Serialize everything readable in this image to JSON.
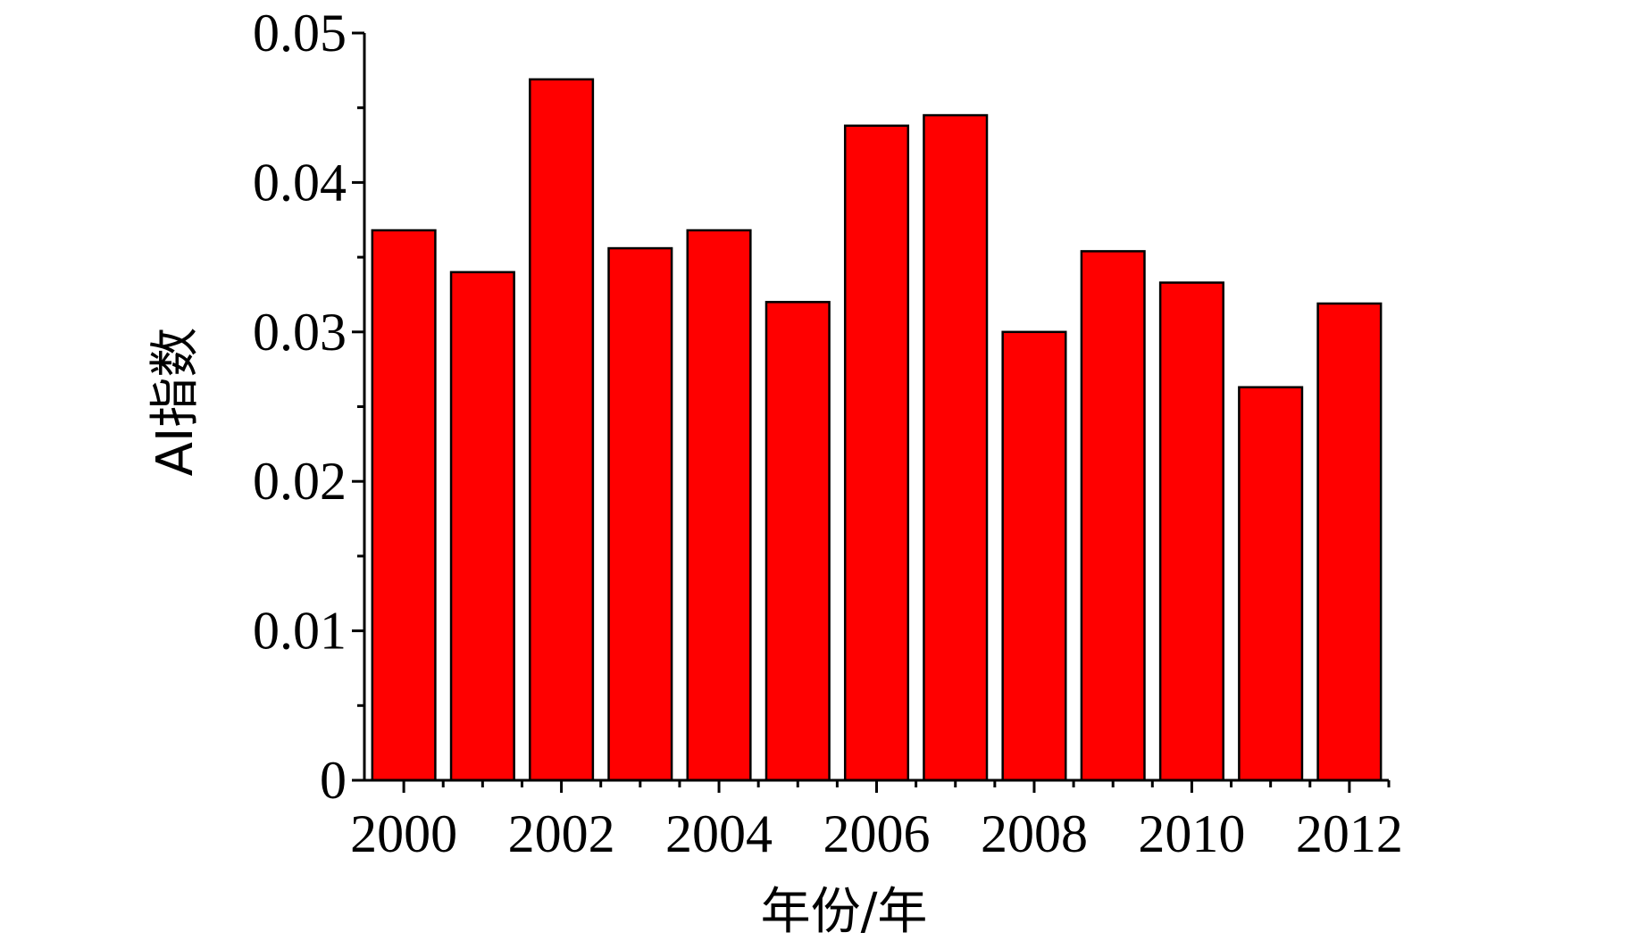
{
  "chart_data": {
    "type": "bar",
    "title": "",
    "xlabel": "年份/年",
    "ylabel": "AI指数",
    "categories": [
      "2000",
      "2001",
      "2002",
      "2003",
      "2004",
      "2005",
      "2006",
      "2007",
      "2008",
      "2009",
      "2010",
      "2011",
      "2012"
    ],
    "values": [
      0.0368,
      0.034,
      0.0469,
      0.0356,
      0.0368,
      0.032,
      0.0438,
      0.0445,
      0.03,
      0.0354,
      0.0333,
      0.0263,
      0.0319
    ],
    "ylim": [
      0,
      0.05
    ],
    "yticks": [
      "0",
      "0.01",
      "0.02",
      "0.03",
      "0.04",
      "0.05"
    ],
    "xtick_labels": [
      "2000",
      "",
      "2002",
      "",
      "2004",
      "",
      "2006",
      "",
      "2008",
      "",
      "2010",
      "",
      "2012"
    ],
    "bar_color": "#ff0000",
    "grid": false,
    "legend": "none"
  }
}
